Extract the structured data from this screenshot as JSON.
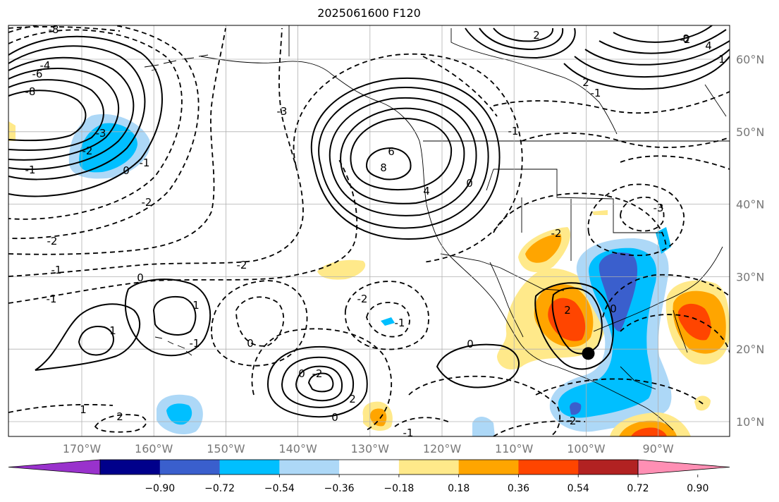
{
  "title": "2025061600 F120",
  "lon_labels": [
    "170°W",
    "160°W",
    "150°W",
    "140°W",
    "130°W",
    "120°W",
    "110°W",
    "100°W",
    "90°W"
  ],
  "lat_labels": [
    "60°N",
    "50°N",
    "40°N",
    "30°N",
    "20°N",
    "10°N"
  ],
  "colorbar": {
    "tick_labels": [
      "−0.90",
      "−0.72",
      "−0.54",
      "−0.36",
      "−0.18",
      "0.18",
      "0.36",
      "0.54",
      "0.72",
      "0.90"
    ],
    "colors": [
      "#9932cc",
      "#00008b",
      "#3a5fcd",
      "#00bfff",
      "#add8f7",
      "#ffffff",
      "#ffe98a",
      "#ffa500",
      "#ff4500",
      "#b22222",
      "#ff8fb4"
    ]
  },
  "contour_labels": [
    "-8",
    "-4",
    "-6",
    "-8",
    "-3",
    "-2",
    "-1",
    "0",
    "-1",
    "-2",
    "-2",
    "-1",
    "0",
    "-1",
    "-1",
    "1",
    "1",
    "0",
    "-2",
    "0",
    "2",
    "2",
    "1",
    "0",
    "-1",
    "-3",
    "6",
    "8",
    "4",
    "0",
    "-2",
    "-2",
    "-1",
    "2",
    "2",
    "-2",
    "-1",
    "1",
    "-3",
    "-2",
    "0",
    "-1",
    "0",
    "-2",
    "8",
    "4",
    "2"
  ],
  "marker": {
    "name": "black-dot",
    "lon": -99.7,
    "lat": 19.4
  }
}
